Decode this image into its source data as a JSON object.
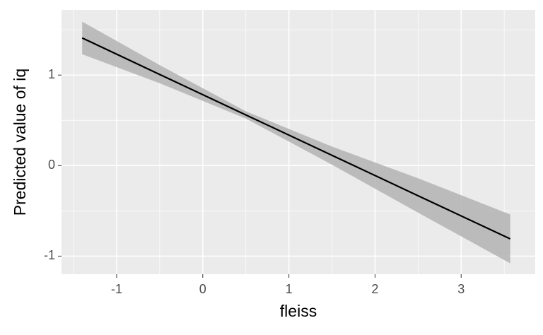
{
  "chart_data": {
    "type": "line",
    "x_label": "fleiss",
    "y_label": "Predicted value of iq",
    "x": [
      -1.4,
      -0.5,
      0.5,
      1.5,
      2.5,
      3.57
    ],
    "series": [
      {
        "color": "#000000",
        "values": [
          1.41,
          1.007,
          0.56,
          0.114,
          -0.333,
          -0.81
        ],
        "ci_lower": [
          1.23,
          0.91,
          0.52,
          0.01,
          -0.52,
          -1.08
        ],
        "ci_upper": [
          1.59,
          1.11,
          0.6,
          0.21,
          -0.14,
          -0.54
        ],
        "ci_color": "#b3b3b3"
      }
    ],
    "xlim": [
      -1.64,
      3.86
    ],
    "xticks": [
      -1,
      0,
      1,
      2,
      3
    ],
    "ylim": [
      -1.2,
      1.72
    ],
    "yticks": [
      -1,
      0,
      1
    ],
    "grid": true,
    "minor_grid": true
  }
}
